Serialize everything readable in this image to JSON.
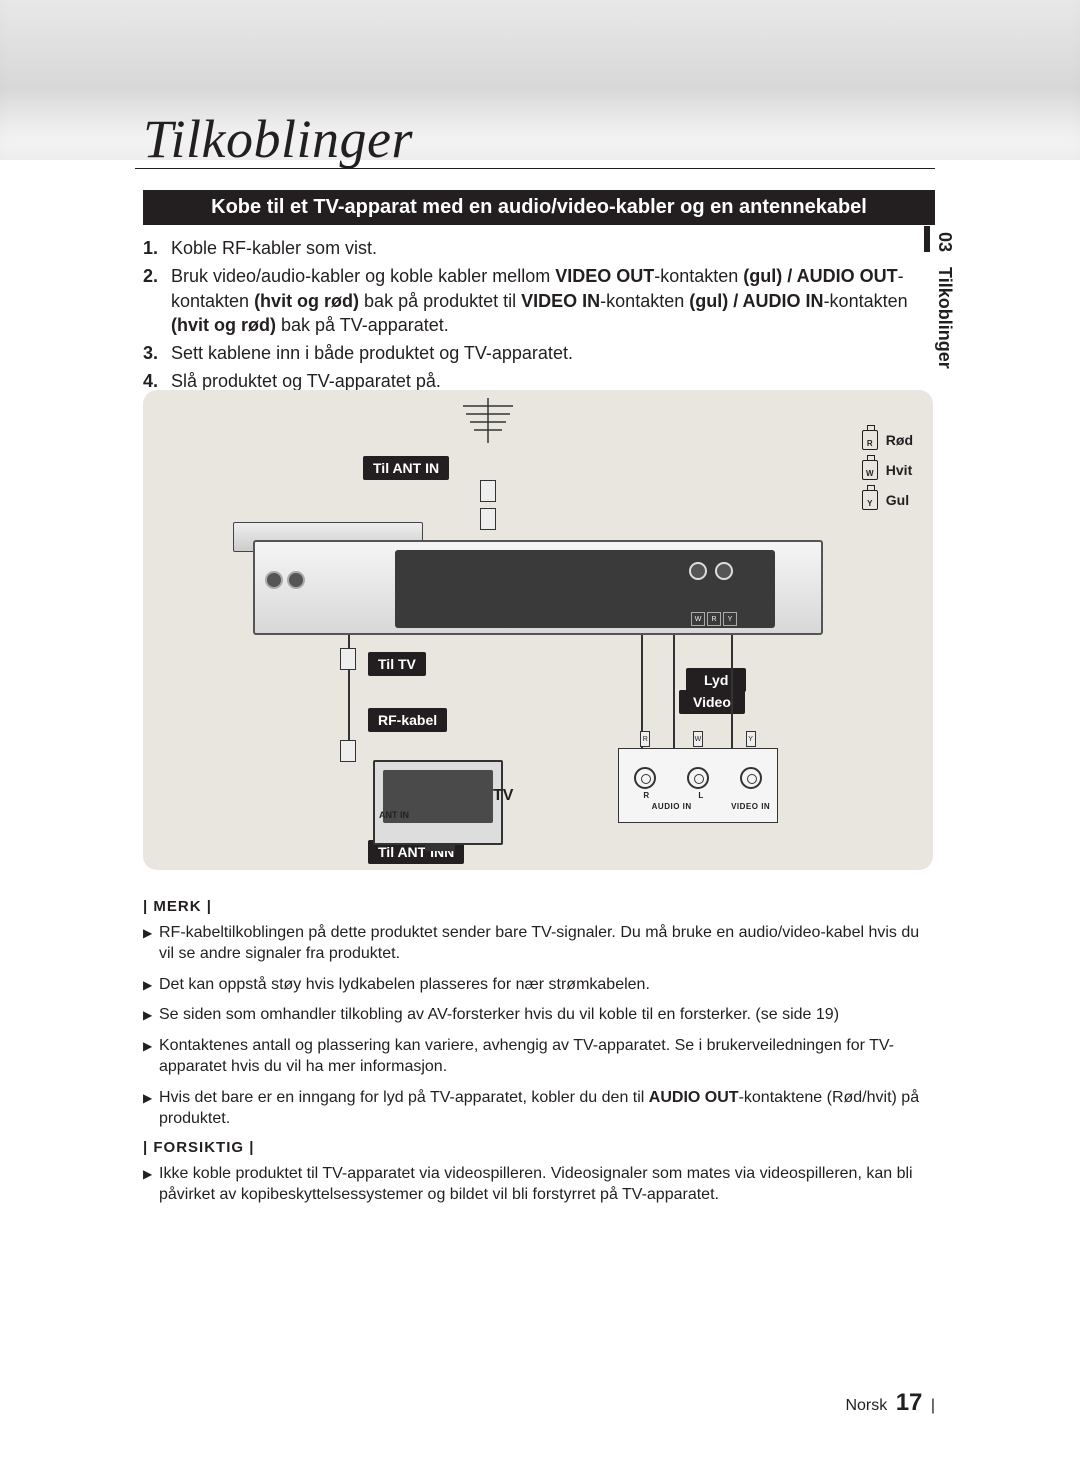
{
  "header": {
    "title": "Tilkoblinger"
  },
  "side_tab": {
    "chapter": "03",
    "label": "Tilkoblinger"
  },
  "section_bar": "Kobe til et TV-apparat med en audio/video-kabler og en antennekabel",
  "steps": [
    {
      "n": "1.",
      "html": "Koble RF-kabler som vist."
    },
    {
      "n": "2.",
      "html": "Bruk video/audio-kabler og koble kabler mellom <b>VIDEO OUT</b>-kontakten <b>(gul) / AUDIO OUT</b>-kontakten <b>(hvit og rød)</b> bak på produktet til <b>VIDEO IN</b>-kontakten <b>(gul) / AUDIO IN</b>-kontakten <b>(hvit og rød)</b> bak på TV-apparatet."
    },
    {
      "n": "3.",
      "html": "Sett kablene inn i både produktet og TV-apparatet."
    },
    {
      "n": "4.",
      "html": "Slå produktet og TV-apparatet på."
    }
  ],
  "diagram": {
    "labels": {
      "ant_in": "Til ANT IN",
      "til_tv": "Til TV",
      "rf_kabel": "RF-kabel",
      "til_ant_inn": "Til ANT INN",
      "lyd": "Lyd",
      "video": "Video",
      "tv": "TV",
      "ant_in_port": "ANT IN",
      "audio_in_port": "AUDIO IN",
      "video_in_port": "VIDEO IN"
    },
    "legend": [
      {
        "letter": "R",
        "name": "Rød"
      },
      {
        "letter": "W",
        "name": "Hvit"
      },
      {
        "letter": "Y",
        "name": "Gul"
      }
    ],
    "colors": {
      "box_bg": "#e8e6de",
      "callout_bg": "#231f20",
      "callout_fg": "#ffffff"
    }
  },
  "notes": {
    "merk_head": "| MERK |",
    "merk": [
      "RF-kabeltilkoblingen på dette produktet sender bare TV-signaler. Du må bruke en audio/video-kabel hvis du vil se andre signaler fra produktet.",
      "Det kan oppstå støy hvis lydkabelen plasseres for nær strømkabelen.",
      "Se siden som omhandler tilkobling av AV-forsterker hvis du vil koble til en forsterker. (se side 19)",
      "Kontaktenes antall og plassering kan variere, avhengig av TV-apparatet. Se i brukerveiledningen for TV-apparatet hvis du vil ha mer informasjon.",
      "Hvis det bare er en inngang for lyd på TV-apparatet, kobler du den til <b>AUDIO OUT</b>-kontaktene (Rød/hvit) på produktet."
    ],
    "forsiktig_head": "| FORSIKTIG |",
    "forsiktig": [
      "Ikke koble produktet til TV-apparatet via videospilleren. Videosignaler som mates via videospilleren, kan bli påvirket av kopibeskyttelsessystemer og bildet vil bli forstyrret på TV-apparatet."
    ]
  },
  "footer": {
    "lang": "Norsk",
    "page": "17"
  }
}
